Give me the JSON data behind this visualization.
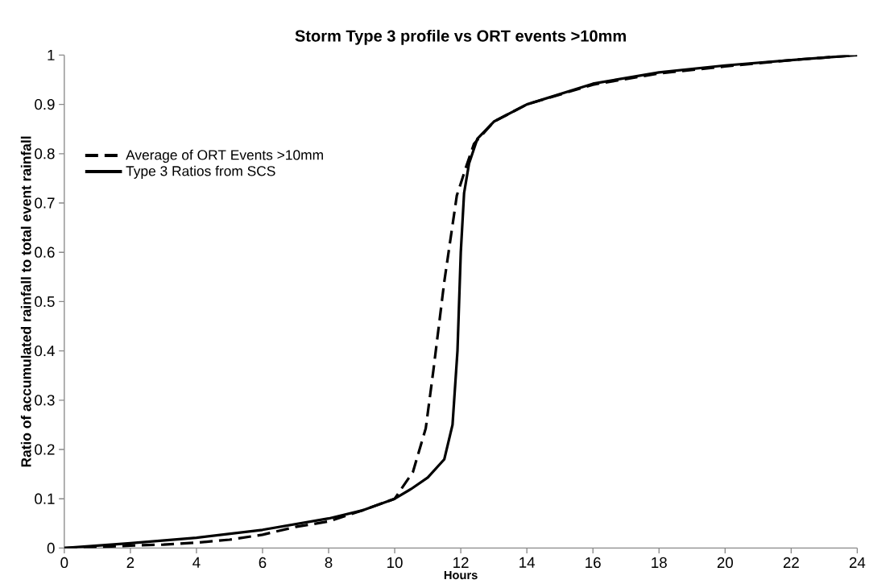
{
  "chart_data": {
    "type": "line",
    "title": "Storm Type 3 profile vs ORT events >10mm",
    "xlabel": "Hours",
    "ylabel": "Ratio of accumulated rainfall to total event rainfall",
    "xlim": [
      0,
      24
    ],
    "ylim": [
      0,
      1
    ],
    "xticks": [
      0,
      2,
      4,
      6,
      8,
      10,
      12,
      14,
      16,
      18,
      20,
      22,
      24
    ],
    "yticks": [
      0,
      0.1,
      0.2,
      0.3,
      0.4,
      0.5,
      0.6,
      0.7,
      0.8,
      0.9,
      1
    ],
    "grid": false,
    "legend": "left",
    "marker": "none",
    "series": [
      {
        "name": "Average of ORT Events >10mm",
        "color": "#000000",
        "line_style": "dashed",
        "x": [
          0,
          1,
          2,
          3,
          4,
          5,
          6,
          6.5,
          7,
          8,
          9,
          10,
          10.2,
          10.55,
          10.94,
          11.17,
          11.5,
          11.88,
          12.17,
          12.4,
          13,
          14,
          16,
          18,
          20,
          22,
          24
        ],
        "values": [
          0,
          0.002,
          0.005,
          0.007,
          0.011,
          0.017,
          0.027,
          0.035,
          0.043,
          0.054,
          0.076,
          0.1,
          0.12,
          0.154,
          0.243,
          0.36,
          0.54,
          0.715,
          0.775,
          0.82,
          0.865,
          0.9,
          0.94,
          0.963,
          0.977,
          0.99,
          1
        ]
      },
      {
        "name": "Type 3 Ratios from SCS",
        "color": "#000000",
        "line_style": "solid",
        "x": [
          0,
          2,
          4,
          6,
          8,
          9,
          10,
          10.5,
          11,
          11.5,
          11.75,
          11.9,
          12,
          12.1,
          12.25,
          12.5,
          13,
          14,
          16,
          18,
          20,
          22,
          24
        ],
        "values": [
          0,
          0.01,
          0.021,
          0.037,
          0.06,
          0.076,
          0.1,
          0.12,
          0.143,
          0.18,
          0.25,
          0.4,
          0.6,
          0.72,
          0.78,
          0.83,
          0.865,
          0.9,
          0.942,
          0.965,
          0.979,
          0.99,
          1
        ]
      }
    ]
  }
}
